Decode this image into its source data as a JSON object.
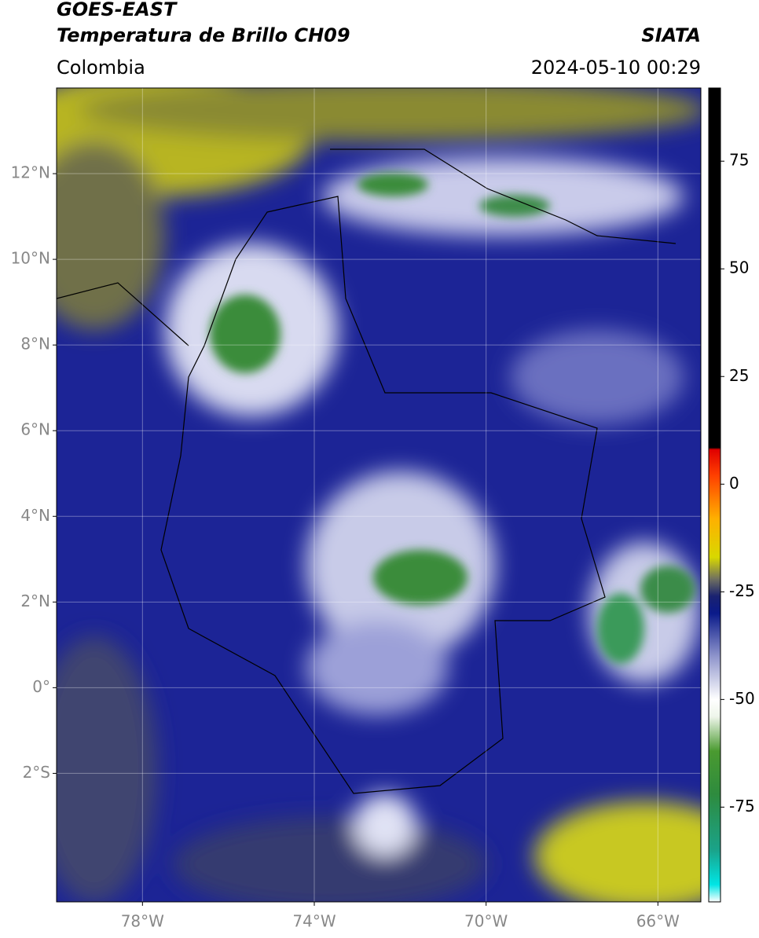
{
  "header": {
    "title": "GOES-EAST",
    "subtitle": "Temperatura de Brillo CH09",
    "source": "SIATA",
    "region": "Colombia",
    "datetime": "2024-05-10 00:29"
  },
  "map": {
    "xlim": [
      -80,
      -65
    ],
    "ylim": [
      -5,
      14
    ],
    "xticks": [
      {
        "value": -78,
        "label": "78°W"
      },
      {
        "value": -74,
        "label": "74°W"
      },
      {
        "value": -70,
        "label": "70°W"
      },
      {
        "value": -66,
        "label": "66°W"
      }
    ],
    "yticks": [
      {
        "value": 12,
        "label": "12°N"
      },
      {
        "value": 10,
        "label": "10°N"
      },
      {
        "value": 8,
        "label": "8°N"
      },
      {
        "value": 6,
        "label": "6°N"
      },
      {
        "value": 4,
        "label": "4°N"
      },
      {
        "value": 2,
        "label": "2°N"
      },
      {
        "value": 0,
        "label": "0°"
      },
      {
        "value": -2,
        "label": "2°S"
      }
    ]
  },
  "colorbar": {
    "clim": [
      -97,
      92
    ],
    "ticks": [
      75,
      50,
      25,
      0,
      -25,
      -50,
      -75
    ],
    "colormap": [
      {
        "value": -97,
        "color": "#ffffff"
      },
      {
        "value": -93,
        "color": "#00e5e5"
      },
      {
        "value": -85,
        "color": "#1aa38a"
      },
      {
        "value": -72,
        "color": "#2e8b3e"
      },
      {
        "value": -62,
        "color": "#4a9a30"
      },
      {
        "value": -54,
        "color": "#eef5ea"
      },
      {
        "value": -50,
        "color": "#ffffff"
      },
      {
        "value": -40,
        "color": "#8f95cc"
      },
      {
        "value": -30,
        "color": "#0a1a8a"
      },
      {
        "value": -26,
        "color": "#1a2270"
      },
      {
        "value": -22,
        "color": "#707060"
      },
      {
        "value": -17,
        "color": "#d8d800"
      },
      {
        "value": -8,
        "color": "#ffb000"
      },
      {
        "value": 2,
        "color": "#ff4000"
      },
      {
        "value": 8,
        "color": "#e00000"
      },
      {
        "value": 8.5,
        "color": "#000000"
      },
      {
        "value": 92,
        "color": "#000000"
      }
    ]
  }
}
